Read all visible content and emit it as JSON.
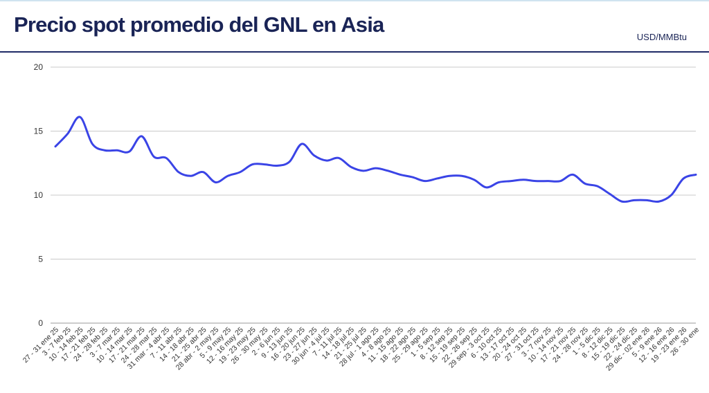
{
  "header": {
    "title": "Precio spot promedio del GNL en Asia",
    "unit": "USD/MMBtu"
  },
  "colors": {
    "title": "#1a2456",
    "rule": "#1e2a66",
    "line": "#3a44e6",
    "grid": "#c8c8c8",
    "tick_text": "#333333"
  },
  "chart_data": {
    "type": "line",
    "title": "Precio spot promedio del GNL en Asia",
    "xlabel": "",
    "ylabel": "",
    "ylim": [
      0,
      20
    ],
    "yticks": [
      0,
      5,
      10,
      15,
      20
    ],
    "grid": true,
    "legend": "none",
    "categories": [
      "27 - 31 ene 25",
      "3 - 7 feb 25",
      "10 - 14 feb 25",
      "17 - 21 feb 25",
      "24 - 28 feb 25",
      "3 - 7 mar 25",
      "10 - 14 mar 25",
      "17 - 21 mar 25",
      "24 - 28 mar 25",
      "31 mar - 4 abr 25",
      "7 - 11 abr 25",
      "14 - 18 abr 25",
      "21 - 25 abr 25",
      "28 abr - 2 may 25",
      "5 - 9 may 25",
      "12 - 16 may 25",
      "19 - 23 may 25",
      "26 - 30 may 25",
      "2 - 6 jun 25",
      "9 - 13 jun 25",
      "16 - 20 jun 25",
      "23 - 27 jun 25",
      "30 jun - 4 jul 25",
      "7 - 11 jul 25",
      "14 - 18 jul 25",
      "21 - 25 jul 25",
      "28 jul - 1 ago 25",
      "4 - 8 ago 25",
      "11 - 15 ago 25",
      "18 - 22 ago 25",
      "25 - 29 ago 25",
      "1 - 5 sep 25",
      "8 - 12 sep 25",
      "15 - 19 sep 25",
      "22 - 26 sep 25",
      "29 sep - 3 oct 25",
      "6 - 10 oct 25",
      "13 - 17 oct 25",
      "20 - 24 oct 25",
      "27 - 31 oct 25",
      "3 - 7 nov 25",
      "10 - 14 nov 25",
      "17 - 21 nov 25",
      "24 - 28 nov 25",
      "1 - 5 dic 25",
      "8 - 12 dic 25",
      "15 - 19 dic 25",
      "22 - 24 dic 25",
      "29 dic - 02 ene 26",
      "5 - 9 ene 26",
      "12 - 16 ene 26",
      "19 - 23 ene 26",
      "26 - 30 ene"
    ],
    "series": [
      {
        "values": [
          13.8,
          14.8,
          16.1,
          14.0,
          13.5,
          13.5,
          13.4,
          14.6,
          13.0,
          12.9,
          11.8,
          11.5,
          11.8,
          11.0,
          11.5,
          11.8,
          12.4,
          12.4,
          12.3,
          12.6,
          14.0,
          13.1,
          12.7,
          12.9,
          12.2,
          11.9,
          12.1,
          11.9,
          11.6,
          11.4,
          11.1,
          11.3,
          11.5,
          11.5,
          11.2,
          10.6,
          11.0,
          11.1,
          11.2,
          11.1,
          11.1,
          11.1,
          11.6,
          10.9,
          10.7,
          10.1,
          9.5,
          9.6,
          9.6,
          9.5,
          10.0,
          11.3,
          11.6
        ]
      }
    ]
  }
}
